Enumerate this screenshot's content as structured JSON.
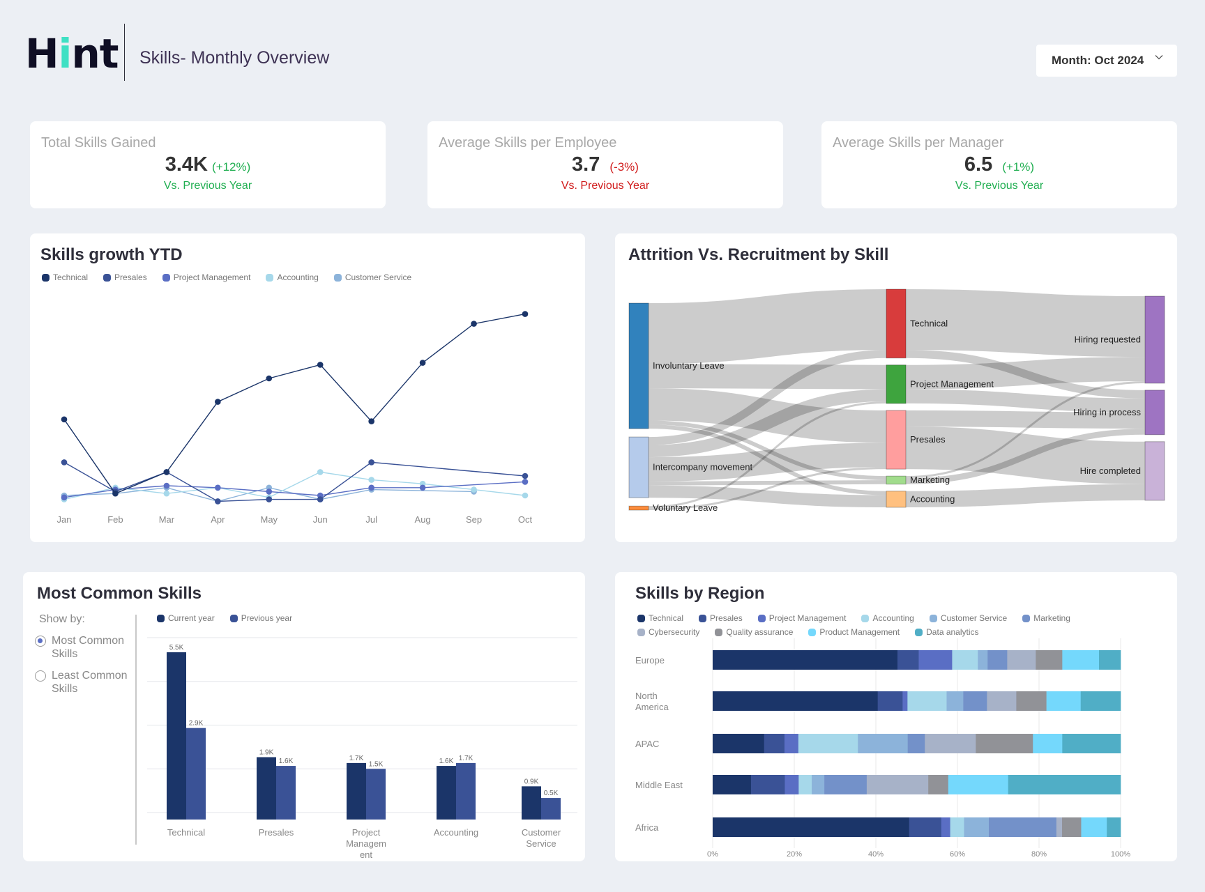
{
  "header": {
    "logo_prefix": "H",
    "logo_accent": "i",
    "logo_suffix": "nt",
    "title": "Skills- Monthly Overview",
    "month_select": {
      "label": "Month: Oct 2024",
      "icon": "chevron-down-icon"
    }
  },
  "kpis": [
    {
      "title": "Total Skills Gained",
      "value": "3.4K",
      "delta": "(+12%)",
      "sub": "Vs. Previous Year",
      "trend": "up",
      "color": "#1fae50"
    },
    {
      "title": "Average Skills per Employee",
      "value": "3.7",
      "delta": "(-3%)",
      "sub": "Vs. Previous Year",
      "trend": "down",
      "color": "#d01b1b"
    },
    {
      "title": "Average Skills per Manager",
      "value": "6.5",
      "delta": "(+1%)",
      "sub": "Vs. Previous Year",
      "trend": "up",
      "color": "#1fae50"
    }
  ],
  "chart_data": [
    {
      "id": "skills-growth",
      "type": "line",
      "title": "Skills growth YTD",
      "xlabel": "",
      "ylabel": "",
      "x": [
        "Jan",
        "Feb",
        "Mar",
        "Apr",
        "May",
        "Jun",
        "Jul",
        "Aug",
        "Sep",
        "Oct"
      ],
      "ylim": [
        0,
        100
      ],
      "grid": false,
      "legend_position": "top-left",
      "series": [
        {
          "name": "Technical",
          "color": "#1b3569",
          "values": [
            44,
            6,
            17,
            53,
            65,
            72,
            43,
            73,
            93,
            98
          ]
        },
        {
          "name": "Presales",
          "color": "#3a5296",
          "values": [
            22,
            7,
            17,
            2,
            3,
            3,
            22,
            null,
            null,
            15
          ]
        },
        {
          "name": "Project Management",
          "color": "#5a6ec4",
          "values": [
            4,
            8,
            10,
            9,
            7,
            5,
            9,
            9,
            null,
            12
          ]
        },
        {
          "name": "Accounting",
          "color": "#a6d8ea",
          "values": [
            3,
            9,
            6,
            9,
            4,
            17,
            13,
            11,
            8,
            5
          ]
        },
        {
          "name": "Customer Service",
          "color": "#8cb3da",
          "values": [
            5,
            6,
            9,
            2,
            9,
            3,
            8,
            null,
            7,
            null
          ]
        }
      ]
    },
    {
      "id": "attrition-sankey",
      "type": "sankey",
      "title": "Attrition Vs. Recruitment by Skill",
      "nodes": [
        {
          "name": "Involuntary Leave",
          "column": 0,
          "color": "#3182bd",
          "value": 62
        },
        {
          "name": "Intercompany movement",
          "column": 0,
          "color": "#b5cbeb",
          "value": 30
        },
        {
          "name": "Voluntary Leave",
          "column": 0,
          "color": "#fd8d3c",
          "value": 2
        },
        {
          "name": "Technical",
          "column": 1,
          "color": "#d83c3c",
          "value": 34
        },
        {
          "name": "Project Management",
          "column": 1,
          "color": "#3ea43e",
          "value": 19
        },
        {
          "name": "Presales",
          "column": 1,
          "color": "#ff9e9e",
          "value": 29
        },
        {
          "name": "Marketing",
          "column": 1,
          "color": "#a1dc8c",
          "value": 4
        },
        {
          "name": "Accounting",
          "column": 1,
          "color": "#ffc07f",
          "value": 8
        },
        {
          "name": "Hiring requested",
          "column": 2,
          "color": "#9e74c2",
          "value": 43
        },
        {
          "name": "Hiring in process",
          "column": 2,
          "color": "#9e74c2",
          "value": 22
        },
        {
          "name": "Hire completed",
          "column": 2,
          "color": "#c9b2d8",
          "value": 29
        }
      ],
      "links": [
        {
          "source": "Involuntary Leave",
          "target": "Technical",
          "value": 30
        },
        {
          "source": "Involuntary Leave",
          "target": "Project Management",
          "value": 12
        },
        {
          "source": "Involuntary Leave",
          "target": "Presales",
          "value": 16
        },
        {
          "source": "Involuntary Leave",
          "target": "Marketing",
          "value": 2
        },
        {
          "source": "Involuntary Leave",
          "target": "Accounting",
          "value": 2
        },
        {
          "source": "Intercompany movement",
          "target": "Technical",
          "value": 4
        },
        {
          "source": "Intercompany movement",
          "target": "Project Management",
          "value": 6
        },
        {
          "source": "Intercompany movement",
          "target": "Presales",
          "value": 12
        },
        {
          "source": "Intercompany movement",
          "target": "Marketing",
          "value": 2
        },
        {
          "source": "Intercompany movement",
          "target": "Accounting",
          "value": 6
        },
        {
          "source": "Voluntary Leave",
          "target": "Project Management",
          "value": 1
        },
        {
          "source": "Voluntary Leave",
          "target": "Presales",
          "value": 1
        },
        {
          "source": "Technical",
          "target": "Hiring requested",
          "value": 30
        },
        {
          "source": "Technical",
          "target": "Hiring in process",
          "value": 4
        },
        {
          "source": "Project Management",
          "target": "Hiring requested",
          "value": 12
        },
        {
          "source": "Project Management",
          "target": "Hiring in process",
          "value": 7
        },
        {
          "source": "Presales",
          "target": "Hiring in process",
          "value": 8
        },
        {
          "source": "Presales",
          "target": "Hire completed",
          "value": 21
        },
        {
          "source": "Marketing",
          "target": "Hiring requested",
          "value": 1
        },
        {
          "source": "Marketing",
          "target": "Hiring in process",
          "value": 3
        },
        {
          "source": "Accounting",
          "target": "Hire completed",
          "value": 8
        }
      ]
    },
    {
      "id": "most-common-skills",
      "type": "bar",
      "title": "Most Common Skills",
      "categories": [
        "Technical",
        "Presales",
        "Project Management",
        "Accounting",
        "Customer Service"
      ],
      "category_labels": [
        [
          "Technical"
        ],
        [
          "Presales"
        ],
        [
          "Project",
          "Managem",
          "ent"
        ],
        [
          "Accounting"
        ],
        [
          "Customer",
          "Service"
        ]
      ],
      "ylim": [
        0,
        6
      ],
      "grid": true,
      "legend_position": "top-left",
      "series": [
        {
          "name": "Current year",
          "color": "#1b3569",
          "values": [
            5.5,
            1.9,
            1.7,
            1.6,
            0.9
          ],
          "labels": [
            "5.5K",
            "1.9K",
            "1.7K",
            "1.6K",
            "0.9K"
          ]
        },
        {
          "name": "Previous year",
          "color": "#3a5296",
          "values": [
            2.9,
            1.6,
            1.5,
            1.7,
            0.5
          ],
          "labels": [
            "2.9K",
            "1.6K",
            "1.5K",
            "1.7K",
            "0.5K"
          ]
        }
      ]
    },
    {
      "id": "skills-by-region",
      "type": "bar",
      "orientation": "horizontal-stacked-100",
      "title": "Skills by Region",
      "categories": [
        "Europe",
        "North America",
        "APAC",
        "Middle East",
        "Africa"
      ],
      "category_labels": [
        [
          "Europe"
        ],
        [
          "North",
          "America"
        ],
        [
          "APAC"
        ],
        [
          "Middle East"
        ],
        [
          "Africa"
        ]
      ],
      "xlim": [
        0,
        100
      ],
      "xticks": [
        "0%",
        "20%",
        "40%",
        "60%",
        "80%",
        "100%"
      ],
      "grid": true,
      "legend_position": "top-left",
      "series": [
        {
          "name": "Technical",
          "color": "#1b3569",
          "values": [
            45.3,
            40.5,
            12.6,
            9.4,
            48.3
          ]
        },
        {
          "name": "Presales",
          "color": "#3a5296",
          "values": [
            5.2,
            6.1,
            5.0,
            8.3,
            7.9
          ]
        },
        {
          "name": "Project Management",
          "color": "#5a6ec4",
          "values": [
            8.2,
            1.2,
            3.4,
            3.4,
            2.2
          ]
        },
        {
          "name": "Accounting",
          "color": "#a6d8ea",
          "values": [
            6.3,
            9.6,
            14.6,
            3.2,
            3.4
          ]
        },
        {
          "name": "Customer Service",
          "color": "#8cb3da",
          "values": [
            2.4,
            4.1,
            12.2,
            3.1,
            6.1
          ]
        },
        {
          "name": "Marketing",
          "color": "#7391c9",
          "values": [
            4.8,
            5.8,
            4.2,
            10.4,
            16.6
          ]
        },
        {
          "name": "Cybersecurity",
          "color": "#a7b2c8",
          "values": [
            7.0,
            7.2,
            12.5,
            15.1,
            1.4
          ]
        },
        {
          "name": "Quality assurance",
          "color": "#919297",
          "values": [
            6.5,
            7.4,
            14.0,
            4.9,
            4.7
          ]
        },
        {
          "name": "Product Management",
          "color": "#74d8fc",
          "values": [
            9.0,
            8.4,
            7.2,
            14.7,
            6.3
          ]
        },
        {
          "name": "Data analytics",
          "color": "#50aec6",
          "values": [
            5.3,
            9.8,
            14.3,
            27.6,
            3.4
          ]
        }
      ]
    }
  ],
  "cards": {
    "growth_title": "Skills growth YTD",
    "sankey_title": "Attrition Vs. Recruitment by Skill",
    "common_title": "Most Common Skills",
    "region_title": "Skills by Region"
  },
  "show_by": {
    "label": "Show by:",
    "options": [
      {
        "label": "Most Common Skills",
        "checked": true
      },
      {
        "label": "Least Common Skills",
        "checked": false
      }
    ]
  }
}
